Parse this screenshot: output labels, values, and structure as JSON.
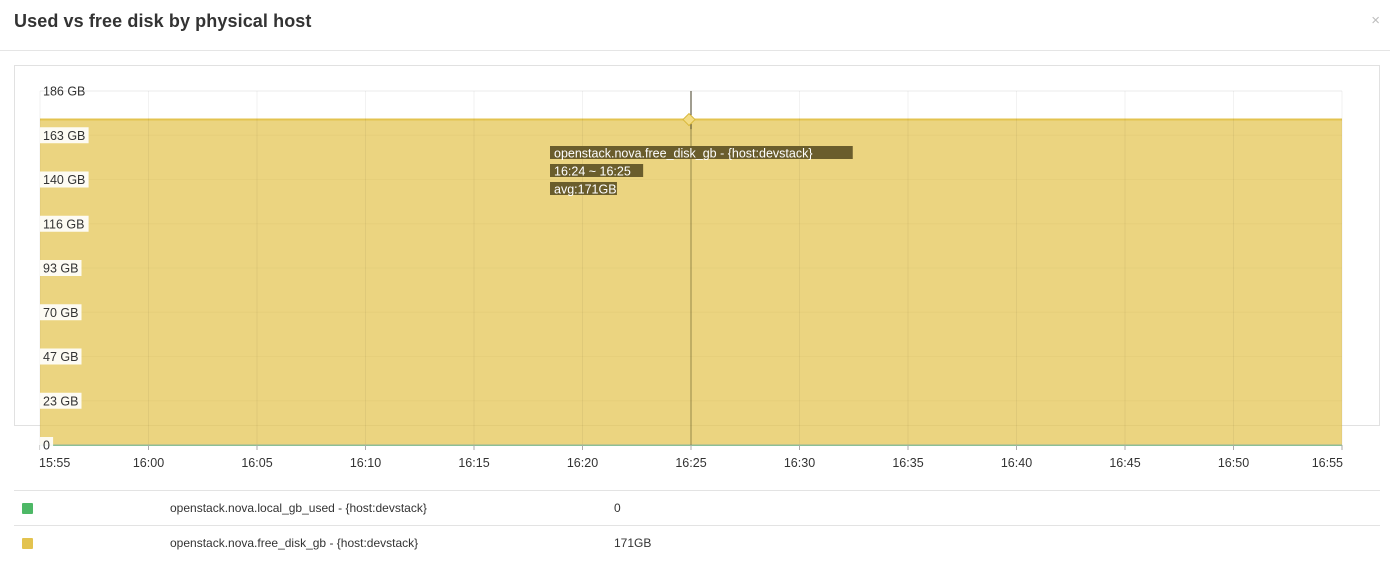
{
  "header": {
    "title": "Used vs free disk by physical host",
    "close_label": "×"
  },
  "chart_data": {
    "type": "area",
    "x": [
      "15:55",
      "16:00",
      "16:05",
      "16:10",
      "16:15",
      "16:20",
      "16:25",
      "16:30",
      "16:35",
      "16:40",
      "16:45",
      "16:50",
      "16:55"
    ],
    "y_ticks": [
      "0",
      "23 GB",
      "47 GB",
      "70 GB",
      "93 GB",
      "116 GB",
      "140 GB",
      "163 GB",
      "186 GB"
    ],
    "ylim": [
      0,
      186
    ],
    "grid": true,
    "series": [
      {
        "name": "openstack.nova.local_gb_used - {host:devstack}",
        "color": "#4db866",
        "values": [
          0,
          0,
          0,
          0,
          0,
          0,
          0,
          0,
          0,
          0,
          0,
          0,
          0
        ]
      },
      {
        "name": "openstack.nova.free_disk_gb - {host:devstack}",
        "color": "#e3c34f",
        "values": [
          171,
          171,
          171,
          171,
          171,
          171,
          171,
          171,
          171,
          171,
          171,
          171,
          171
        ]
      }
    ],
    "tooltip": {
      "series": "openstack.nova.free_disk_gb - {host:devstack}",
      "time_range": "16:24 ~ 16:25",
      "value": "avg:171GB",
      "x": "16:25"
    }
  },
  "legend": [
    {
      "name": "openstack.nova.local_gb_used - {host:devstack}",
      "value": "0",
      "color": "#4db866"
    },
    {
      "name": "openstack.nova.free_disk_gb - {host:devstack}",
      "value": "171GB",
      "color": "#e3c34f"
    }
  ]
}
